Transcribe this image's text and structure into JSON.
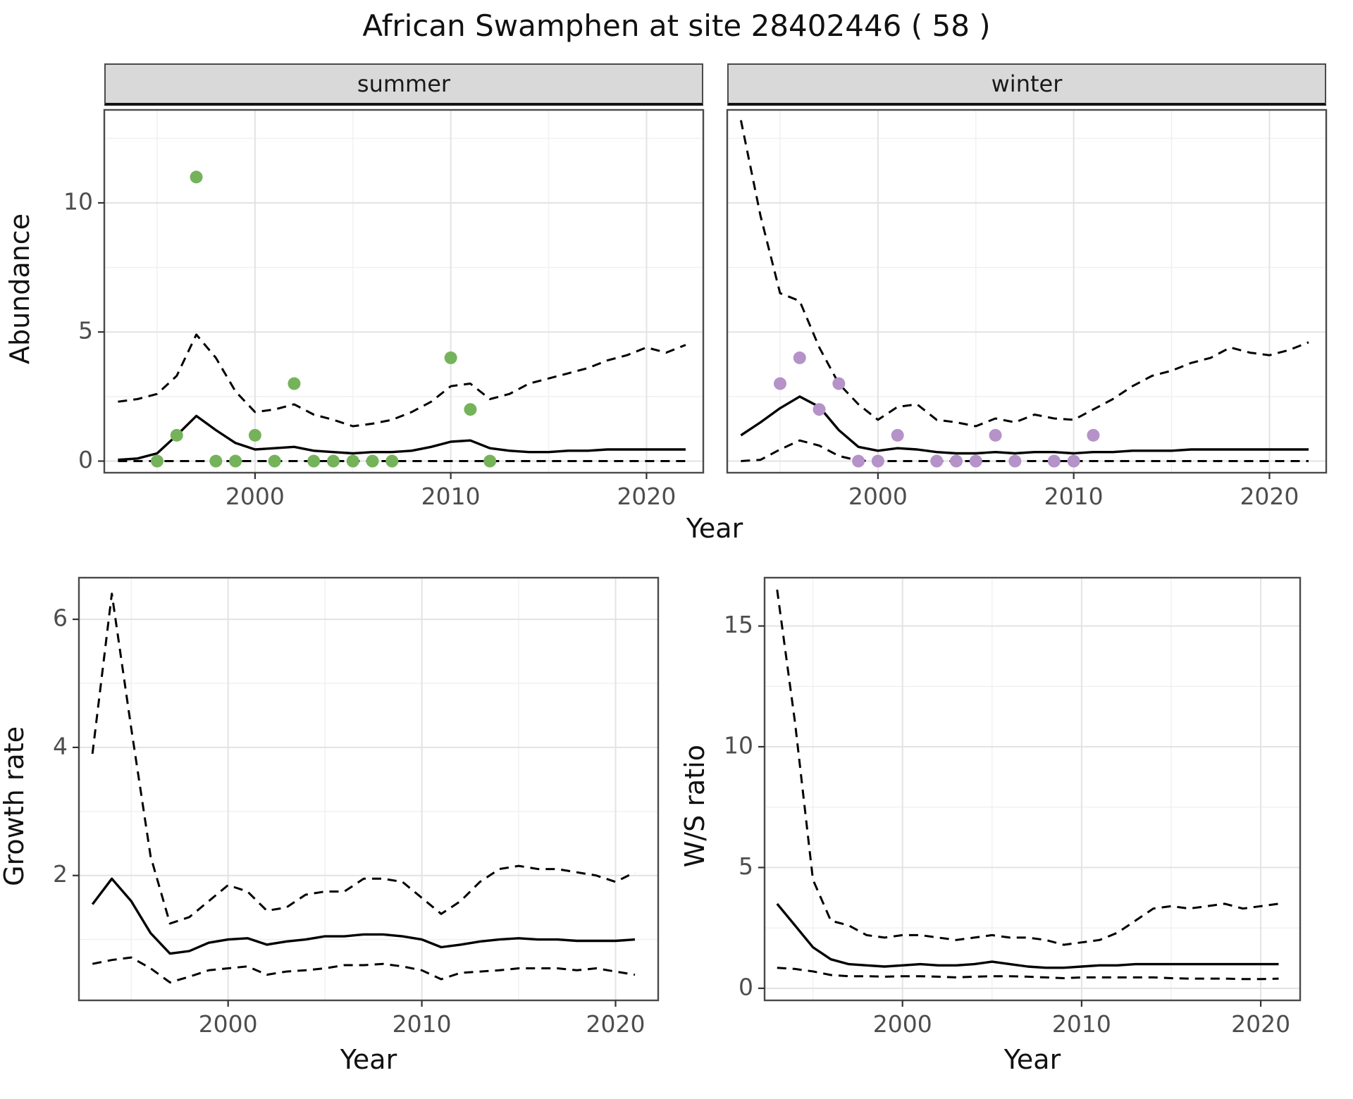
{
  "title": "African Swamphen at site 28402446 ( 58 )",
  "colors": {
    "summer_point": "#75b35b",
    "winter_point": "#b592c8",
    "line": "#000000",
    "strip_bg": "#d9d9d9",
    "panel_border": "#4a4a4a",
    "grid_major": "#e3e3e3",
    "grid_minor": "#f0f0f0",
    "tick_mark": "#333333",
    "tick_text": "#4d4d4d"
  },
  "chart_data": [
    {
      "id": "abundance-summer",
      "type": "line",
      "facet_label": "summer",
      "ylabel": "Abundance",
      "xlabel": "Year",
      "xlim": [
        1992.3,
        2022.9
      ],
      "ylim": [
        -0.45,
        13.6
      ],
      "xticks": [
        2000,
        2010,
        2020
      ],
      "yticks": [
        0,
        5,
        10
      ],
      "grid": true,
      "legend": false,
      "years": [
        1993,
        1994,
        1995,
        1996,
        1997,
        1998,
        1999,
        2000,
        2001,
        2002,
        2003,
        2004,
        2005,
        2006,
        2007,
        2008,
        2009,
        2010,
        2011,
        2012,
        2013,
        2014,
        2015,
        2016,
        2017,
        2018,
        2019,
        2020,
        2021,
        2022
      ],
      "series": [
        {
          "name": "fit-median",
          "style": "solid",
          "values": [
            0.05,
            0.1,
            0.3,
            1.0,
            1.75,
            1.2,
            0.7,
            0.45,
            0.5,
            0.55,
            0.4,
            0.35,
            0.3,
            0.35,
            0.35,
            0.4,
            0.55,
            0.75,
            0.8,
            0.5,
            0.4,
            0.35,
            0.35,
            0.4,
            0.4,
            0.45,
            0.45,
            0.45,
            0.45,
            0.45
          ]
        },
        {
          "name": "ci-upper",
          "style": "dashed",
          "values": [
            2.3,
            2.4,
            2.6,
            3.3,
            4.9,
            4.0,
            2.7,
            1.9,
            2.0,
            2.2,
            1.8,
            1.6,
            1.35,
            1.45,
            1.6,
            1.9,
            2.3,
            2.9,
            3.0,
            2.4,
            2.6,
            3.0,
            3.2,
            3.4,
            3.6,
            3.9,
            4.1,
            4.4,
            4.2,
            4.5
          ]
        },
        {
          "name": "ci-lower",
          "style": "dashed",
          "values": [
            0,
            0,
            0,
            0,
            0,
            0,
            0,
            0,
            0,
            0,
            0,
            0,
            0,
            0,
            0,
            0,
            0,
            0,
            0,
            0,
            0,
            0,
            0,
            0,
            0,
            0,
            0,
            0,
            0,
            0
          ]
        }
      ],
      "points": {
        "name": "observed-summer-counts",
        "color_key": "summer_point",
        "x": [
          1995,
          1996,
          1997,
          1998,
          1999,
          2000,
          2001,
          2002,
          2003,
          2004,
          2005,
          2006,
          2007,
          2010,
          2011,
          2012
        ],
        "y": [
          0,
          1,
          11,
          0,
          0,
          1,
          0,
          3,
          0,
          0,
          0,
          0,
          0,
          4,
          2,
          0
        ]
      }
    },
    {
      "id": "abundance-winter",
      "type": "line",
      "facet_label": "winter",
      "ylabel": "Abundance",
      "xlabel": "Year",
      "xlim": [
        1992.3,
        2022.9
      ],
      "ylim": [
        -0.45,
        13.6
      ],
      "xticks": [
        2000,
        2010,
        2020
      ],
      "yticks": [
        0,
        5,
        10
      ],
      "grid": true,
      "legend": false,
      "years": [
        1993,
        1994,
        1995,
        1996,
        1997,
        1998,
        1999,
        2000,
        2001,
        2002,
        2003,
        2004,
        2005,
        2006,
        2007,
        2008,
        2009,
        2010,
        2011,
        2012,
        2013,
        2014,
        2015,
        2016,
        2017,
        2018,
        2019,
        2020,
        2021,
        2022
      ],
      "series": [
        {
          "name": "fit-median",
          "style": "solid",
          "values": [
            1.0,
            1.5,
            2.05,
            2.5,
            2.1,
            1.2,
            0.55,
            0.4,
            0.5,
            0.45,
            0.35,
            0.3,
            0.3,
            0.35,
            0.3,
            0.35,
            0.35,
            0.3,
            0.35,
            0.35,
            0.4,
            0.4,
            0.4,
            0.45,
            0.45,
            0.45,
            0.45,
            0.45,
            0.45,
            0.45
          ]
        },
        {
          "name": "ci-upper",
          "style": "dashed",
          "values": [
            13.2,
            9.5,
            6.5,
            6.2,
            4.4,
            3.0,
            2.2,
            1.6,
            2.1,
            2.2,
            1.6,
            1.5,
            1.35,
            1.65,
            1.5,
            1.8,
            1.65,
            1.6,
            2.0,
            2.4,
            2.9,
            3.3,
            3.5,
            3.8,
            4.0,
            4.4,
            4.2,
            4.1,
            4.3,
            4.6
          ]
        },
        {
          "name": "ci-lower",
          "style": "dashed",
          "values": [
            0,
            0.05,
            0.45,
            0.8,
            0.6,
            0.2,
            0.02,
            0,
            0,
            0,
            0,
            0,
            0,
            0,
            0,
            0,
            0,
            0,
            0,
            0,
            0,
            0,
            0,
            0,
            0,
            0,
            0,
            0,
            0,
            0
          ]
        }
      ],
      "points": {
        "name": "observed-winter-counts",
        "color_key": "winter_point",
        "x": [
          1995,
          1996,
          1997,
          1998,
          1999,
          2000,
          2001,
          2003,
          2004,
          2005,
          2006,
          2007,
          2009,
          2010,
          2011
        ],
        "y": [
          3,
          4,
          2,
          3,
          0,
          0,
          1,
          0,
          0,
          0,
          1,
          0,
          0,
          0,
          1
        ]
      }
    },
    {
      "id": "growth-rate",
      "type": "line",
      "facet_label": "",
      "ylabel": "Growth rate",
      "xlabel": "Year",
      "xlim": [
        1992.3,
        2022.2
      ],
      "ylim": [
        0.05,
        6.65
      ],
      "xticks": [
        2000,
        2010,
        2020
      ],
      "yticks": [
        2,
        4,
        6
      ],
      "grid": true,
      "legend": false,
      "years": [
        1993,
        1994,
        1995,
        1996,
        1997,
        1998,
        1999,
        2000,
        2001,
        2002,
        2003,
        2004,
        2005,
        2006,
        2007,
        2008,
        2009,
        2010,
        2011,
        2012,
        2013,
        2014,
        2015,
        2016,
        2017,
        2018,
        2019,
        2020,
        2021
      ],
      "series": [
        {
          "name": "fit-median",
          "style": "solid",
          "values": [
            1.55,
            1.95,
            1.6,
            1.1,
            0.78,
            0.82,
            0.95,
            1.0,
            1.02,
            0.92,
            0.97,
            1.0,
            1.05,
            1.05,
            1.08,
            1.08,
            1.05,
            1.0,
            0.88,
            0.92,
            0.97,
            1.0,
            1.02,
            1.0,
            1.0,
            0.98,
            0.98,
            0.98,
            1.0
          ]
        },
        {
          "name": "ci-upper",
          "style": "dashed",
          "values": [
            3.9,
            6.4,
            4.3,
            2.3,
            1.25,
            1.35,
            1.6,
            1.85,
            1.75,
            1.45,
            1.5,
            1.7,
            1.75,
            1.75,
            1.95,
            1.95,
            1.9,
            1.65,
            1.4,
            1.6,
            1.9,
            2.1,
            2.15,
            2.1,
            2.1,
            2.05,
            2.0,
            1.9,
            2.05
          ]
        },
        {
          "name": "ci-lower",
          "style": "dashed",
          "values": [
            0.62,
            0.68,
            0.72,
            0.55,
            0.33,
            0.42,
            0.52,
            0.55,
            0.58,
            0.45,
            0.5,
            0.52,
            0.55,
            0.6,
            0.6,
            0.62,
            0.58,
            0.52,
            0.38,
            0.48,
            0.5,
            0.52,
            0.55,
            0.55,
            0.55,
            0.52,
            0.55,
            0.5,
            0.45
          ]
        }
      ],
      "points": null
    },
    {
      "id": "ws-ratio",
      "type": "line",
      "facet_label": "",
      "ylabel": "W/S ratio",
      "xlabel": "Year",
      "xlim": [
        1992.3,
        2022.2
      ],
      "ylim": [
        -0.5,
        17.0
      ],
      "xticks": [
        2000,
        2010,
        2020
      ],
      "yticks": [
        0,
        5,
        10,
        15
      ],
      "grid": true,
      "legend": false,
      "years": [
        1993,
        1994,
        1995,
        1996,
        1997,
        1998,
        1999,
        2000,
        2001,
        2002,
        2003,
        2004,
        2005,
        2006,
        2007,
        2008,
        2009,
        2010,
        2011,
        2012,
        2013,
        2014,
        2015,
        2016,
        2017,
        2018,
        2019,
        2020,
        2021
      ],
      "series": [
        {
          "name": "fit-median",
          "style": "solid",
          "values": [
            3.5,
            2.6,
            1.7,
            1.2,
            1.0,
            0.95,
            0.9,
            0.95,
            1.0,
            0.95,
            0.95,
            1.0,
            1.1,
            1.0,
            0.9,
            0.85,
            0.85,
            0.9,
            0.95,
            0.95,
            1.0,
            1.0,
            1.0,
            1.0,
            1.0,
            1.0,
            1.0,
            1.0,
            1.0
          ]
        },
        {
          "name": "ci-upper",
          "style": "dashed",
          "values": [
            16.5,
            11.0,
            4.5,
            2.8,
            2.6,
            2.2,
            2.1,
            2.2,
            2.2,
            2.1,
            2.0,
            2.1,
            2.2,
            2.1,
            2.1,
            2.0,
            1.8,
            1.9,
            2.0,
            2.3,
            2.8,
            3.3,
            3.4,
            3.3,
            3.4,
            3.5,
            3.3,
            3.4,
            3.5
          ]
        },
        {
          "name": "ci-lower",
          "style": "dashed",
          "values": [
            0.85,
            0.8,
            0.7,
            0.55,
            0.5,
            0.5,
            0.48,
            0.5,
            0.5,
            0.48,
            0.45,
            0.48,
            0.5,
            0.5,
            0.48,
            0.45,
            0.42,
            0.45,
            0.45,
            0.45,
            0.45,
            0.45,
            0.42,
            0.4,
            0.4,
            0.4,
            0.38,
            0.38,
            0.4
          ]
        }
      ],
      "points": null
    }
  ]
}
